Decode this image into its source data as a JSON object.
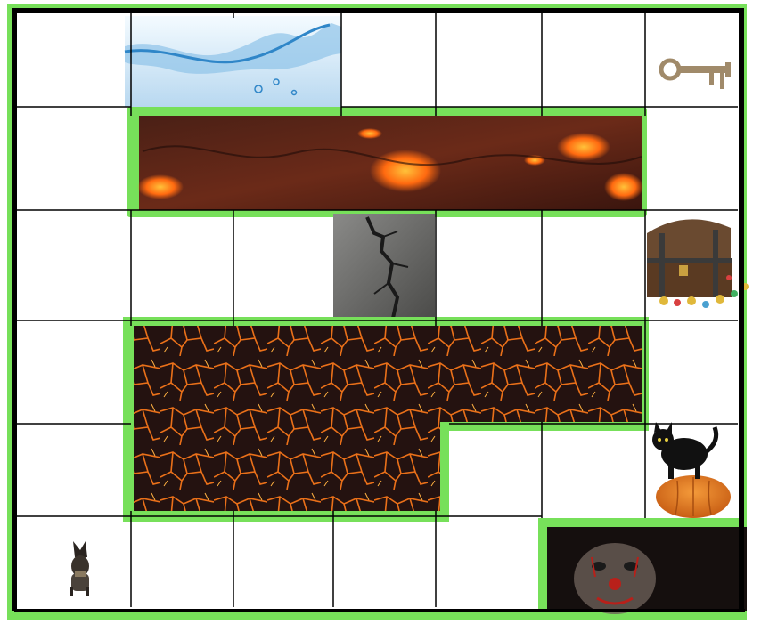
{
  "board": {
    "columns": 7,
    "rows": 6,
    "border_color": "#000000",
    "highlight_color": "#77e05a"
  },
  "tiles": [
    {
      "type": "water",
      "description_icon": "water-splash-icon"
    },
    {
      "type": "key",
      "description_icon": "key-icon"
    },
    {
      "type": "lava-strip",
      "description_icon": "lava-icon"
    },
    {
      "type": "cracked-rock",
      "description_icon": "crack-icon"
    },
    {
      "type": "treasure",
      "description_icon": "treasure-chest-icon"
    },
    {
      "type": "lava-field",
      "description_icon": "lava-icon"
    },
    {
      "type": "cat-pumpkin",
      "description_icon": "black-cat-pumpkin-icon"
    },
    {
      "type": "dog",
      "description_icon": "dog-icon"
    },
    {
      "type": "clown",
      "description_icon": "clown-face-icon"
    }
  ],
  "colors": {
    "lava_dark": "#3a1a12",
    "lava_glow": "#ff7a1a",
    "water": "#cfe6f6",
    "rock": "#6a6a6a",
    "pumpkin": "#e07a22"
  }
}
